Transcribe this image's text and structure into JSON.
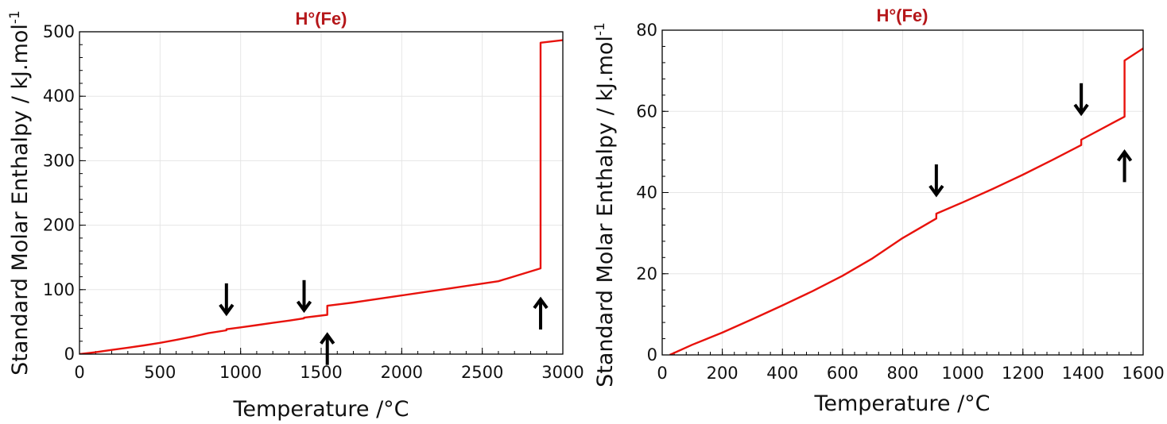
{
  "chart_data": [
    {
      "type": "line",
      "title": "H°(Fe)",
      "xlabel": "Temperature /°C",
      "ylabel": "Standard Molar Enthalpy / kJ.mol",
      "ylabel_sup": "-1",
      "xlim": [
        0,
        3000
      ],
      "ylim": [
        0,
        500
      ],
      "xticks": [
        0,
        500,
        1000,
        1500,
        2000,
        2500,
        3000
      ],
      "yticks": [
        0,
        100,
        200,
        300,
        400,
        500
      ],
      "grid": true,
      "series": [
        {
          "color": "#e8120c",
          "x": [
            0,
            100,
            200,
            300,
            400,
            500,
            600,
            700,
            800,
            912,
            912,
            1000,
            1100,
            1200,
            1300,
            1394,
            1394,
            1538,
            1538,
            1700,
            2000,
            2300,
            2600,
            2862,
            2862,
            3000
          ],
          "y": [
            0,
            3,
            6.5,
            10,
            13.5,
            17.5,
            22,
            27,
            32.5,
            37,
            38.5,
            41.5,
            45,
            48.5,
            52,
            55.5,
            56.5,
            61,
            75,
            80,
            91,
            102,
            113,
            133,
            483,
            487
          ]
        }
      ],
      "annotations": [
        {
          "text": "arrow",
          "direction": "down",
          "x": 912,
          "y": 63
        },
        {
          "text": "arrow",
          "direction": "down",
          "x": 1394,
          "y": 68
        },
        {
          "text": "arrow",
          "direction": "up",
          "x": 1538,
          "y": 30
        },
        {
          "text": "arrow",
          "direction": "up",
          "x": 2862,
          "y": 85
        }
      ]
    },
    {
      "type": "line",
      "title": "H°(Fe)",
      "xlabel": "Temperature /°C",
      "ylabel": "Standard Molar Enthalpy / kJ.mol",
      "ylabel_sup": "-1",
      "xlim": [
        0,
        1600
      ],
      "ylim": [
        0,
        80
      ],
      "xticks": [
        0,
        200,
        400,
        600,
        800,
        1000,
        1200,
        1400,
        1600
      ],
      "yticks": [
        0,
        20,
        40,
        60,
        80
      ],
      "grid": true,
      "series": [
        {
          "color": "#e8120c",
          "x": [
            25,
            100,
            200,
            300,
            400,
            500,
            600,
            700,
            800,
            912,
            912,
            1000,
            1100,
            1200,
            1300,
            1394,
            1394,
            1538,
            1538,
            1600
          ],
          "y": [
            0,
            2.5,
            5.5,
            8.8,
            12.2,
            15.7,
            19.5,
            23.8,
            28.8,
            33.6,
            34.8,
            37.6,
            40.9,
            44.4,
            48.1,
            51.7,
            53,
            58.7,
            72.5,
            75.5
          ]
        }
      ],
      "annotations": [
        {
          "text": "arrow",
          "direction": "down",
          "x": 912,
          "y": 39.5
        },
        {
          "text": "arrow",
          "direction": "down",
          "x": 1394,
          "y": 59.5
        },
        {
          "text": "arrow",
          "direction": "up",
          "x": 1538,
          "y": 50
        }
      ]
    }
  ]
}
